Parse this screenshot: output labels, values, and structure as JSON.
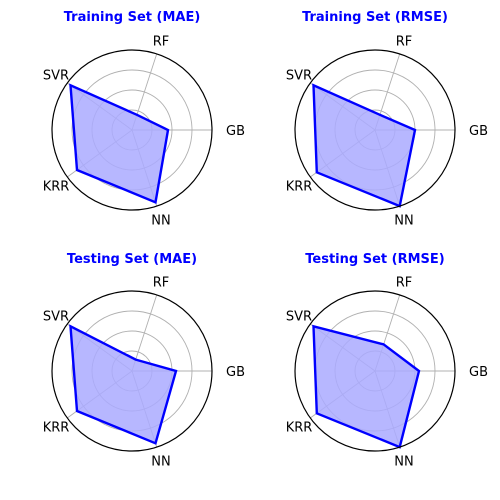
{
  "colors": {
    "line": "#0000ff",
    "fill": "#aaaaff",
    "title": "#0000ff",
    "grid": "#b0b0b0"
  },
  "chart_data": [
    {
      "type": "radar",
      "title": "Training Set (MAE)",
      "categories": [
        "RF",
        "GB",
        "NN",
        "KRR",
        "SVR"
      ],
      "values": [
        0.2,
        0.45,
        0.95,
        0.85,
        0.95
      ],
      "rmax": 1.0,
      "grid": true
    },
    {
      "type": "radar",
      "title": "Training Set (RMSE)",
      "categories": [
        "RF",
        "GB",
        "NN",
        "KRR",
        "SVR"
      ],
      "values": [
        0.2,
        0.5,
        1.0,
        0.9,
        0.95
      ],
      "rmax": 1.0,
      "grid": true
    },
    {
      "type": "radar",
      "title": "Testing Set (MAE)",
      "categories": [
        "RF",
        "GB",
        "NN",
        "KRR",
        "SVR"
      ],
      "values": [
        0.15,
        0.55,
        0.95,
        0.85,
        0.95
      ],
      "rmax": 1.0,
      "grid": true
    },
    {
      "type": "radar",
      "title": "Testing Set (RMSE)",
      "categories": [
        "RF",
        "GB",
        "NN",
        "KRR",
        "SVR"
      ],
      "values": [
        0.35,
        0.55,
        1.0,
        0.9,
        0.95
      ],
      "rmax": 1.0,
      "grid": true
    }
  ]
}
